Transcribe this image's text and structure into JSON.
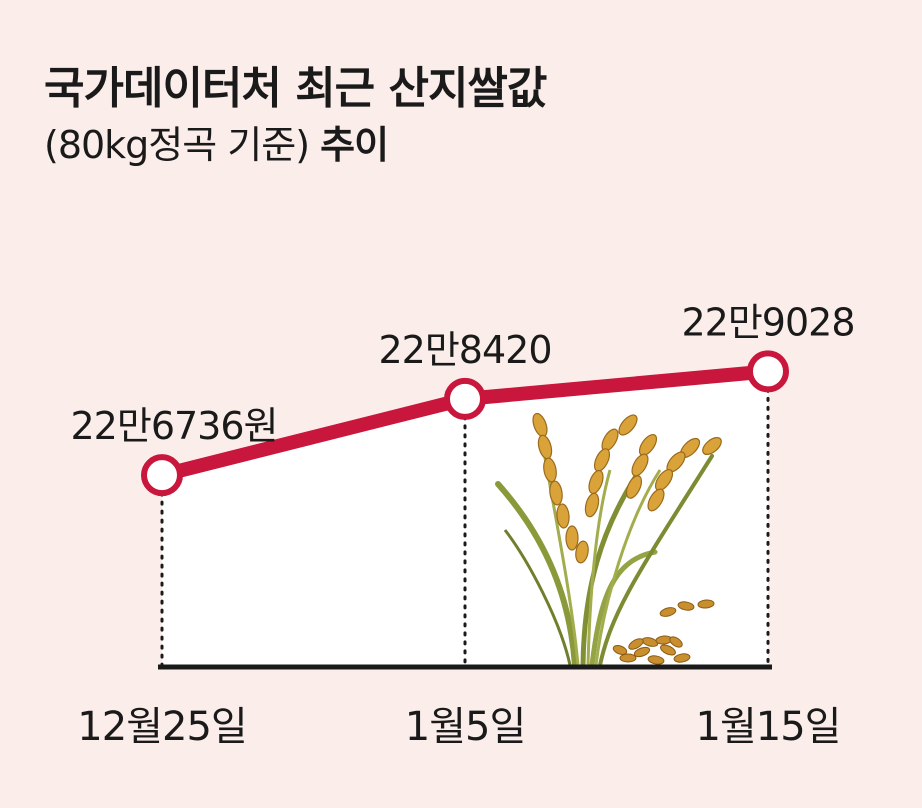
{
  "title": "국가데이터처 최근 산지쌀값",
  "subtitle_prefix": "(80kg정곡 기준)",
  "subtitle_bold": "추이",
  "colors": {
    "line": "#c8163c",
    "background": "#fbeeea",
    "plot_area": "#ffffff",
    "text": "#1a1a1a"
  },
  "illustration": "rice-stalks-illustration",
  "chart_data": {
    "type": "line",
    "categories": [
      "12월25일",
      "1월5일",
      "1월15일"
    ],
    "values": [
      226736,
      228420,
      229028
    ],
    "data_labels": [
      "22만6736원",
      "22만8420",
      "22만9028"
    ],
    "ylim": [
      222500,
      229500
    ],
    "grid": false,
    "xlabel": "",
    "ylabel": ""
  }
}
